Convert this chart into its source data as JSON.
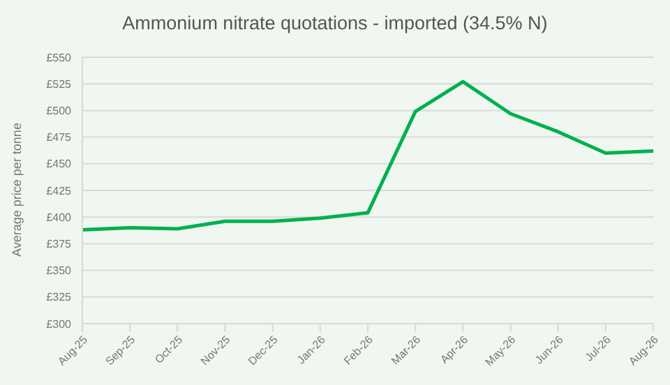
{
  "chart_data": {
    "type": "line",
    "title": "Ammonium nitrate quotations - imported (34.5% N)",
    "ylabel": "Average price per tonne",
    "categories": [
      "Aug-25",
      "Sep-25",
      "Oct-25",
      "Nov-25",
      "Dec-25",
      "Jan-26",
      "Feb-26",
      "Mar-26",
      "Apr-26",
      "May-26",
      "Jun-26",
      "Jul-26",
      "Aug-26"
    ],
    "series": [
      {
        "color": "#00b050",
        "values": [
          388,
          390,
          389,
          396,
          396,
          399,
          404,
          499,
          527,
          497,
          480,
          460,
          462
        ]
      }
    ],
    "ylim": [
      300,
      550
    ],
    "yticks": [
      {
        "value": 300,
        "label": "£300"
      },
      {
        "value": 325,
        "label": "£325"
      },
      {
        "value": 350,
        "label": "£350"
      },
      {
        "value": 375,
        "label": "£375"
      },
      {
        "value": 400,
        "label": "£400"
      },
      {
        "value": 425,
        "label": "£425"
      },
      {
        "value": 450,
        "label": "£450"
      },
      {
        "value": 475,
        "label": "£475"
      },
      {
        "value": 500,
        "label": "£500"
      },
      {
        "value": 525,
        "label": "£525"
      },
      {
        "value": 550,
        "label": "£550"
      }
    ],
    "grid": "y",
    "legend": false,
    "marker": "none",
    "line_style": "solid"
  }
}
